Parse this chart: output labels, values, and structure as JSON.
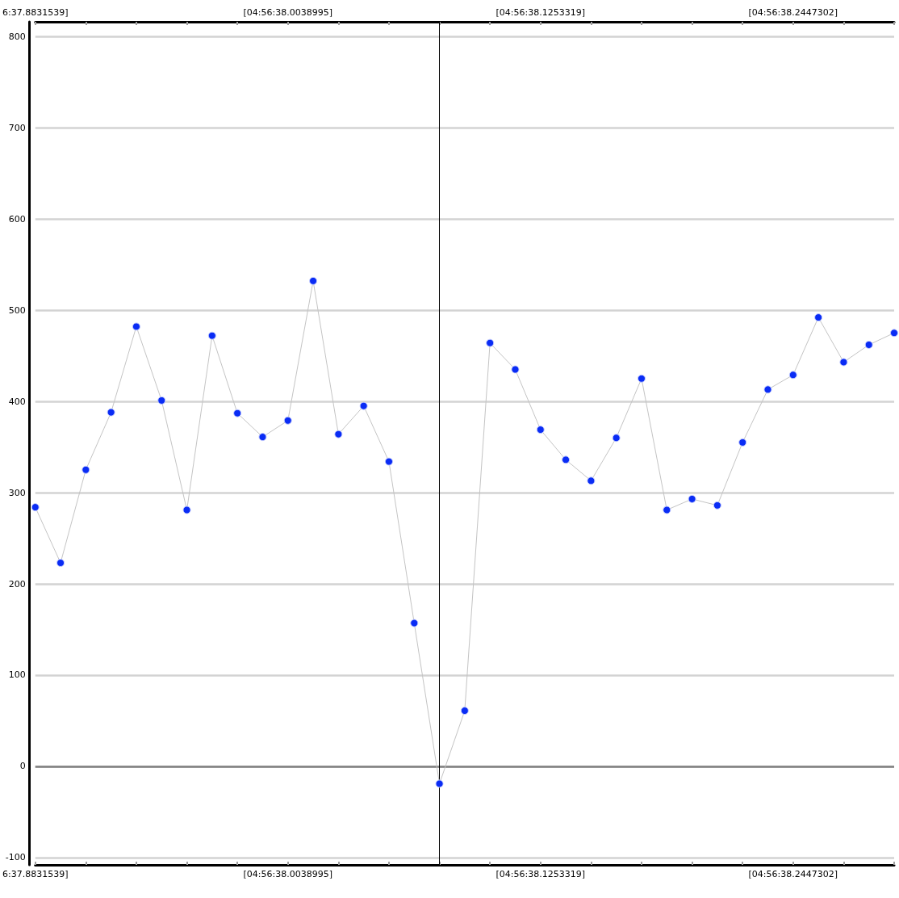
{
  "chart_data": {
    "type": "line",
    "categories": [
      "6:37.8831539]",
      null,
      null,
      null,
      null,
      null,
      null,
      null,
      null,
      null,
      "[04:56:38.0038995]",
      null,
      null,
      null,
      null,
      null,
      null,
      null,
      null,
      null,
      "[04:56:38.1253319]",
      null,
      null,
      null,
      null,
      null,
      null,
      null,
      null,
      null,
      "[04:56:38.2447302]",
      null,
      null,
      null,
      null
    ],
    "values": [
      284,
      223,
      325,
      388,
      482,
      401,
      281,
      472,
      387,
      361,
      379,
      532,
      364,
      395,
      334,
      157,
      -19,
      61,
      464,
      435,
      369,
      336,
      313,
      360,
      425,
      281,
      293,
      286,
      355,
      413,
      429,
      492,
      443,
      462,
      475
    ],
    "color": "#0a2cf5",
    "ylim": [
      -108,
      816
    ],
    "yticks": [
      -100,
      0,
      100,
      200,
      300,
      400,
      500,
      600,
      700,
      800
    ],
    "grid": "y",
    "marker": "circle",
    "line_style": "solid",
    "ref_lines": [
      {
        "axis": "y",
        "value": 0,
        "color": "#808080"
      }
    ]
  }
}
